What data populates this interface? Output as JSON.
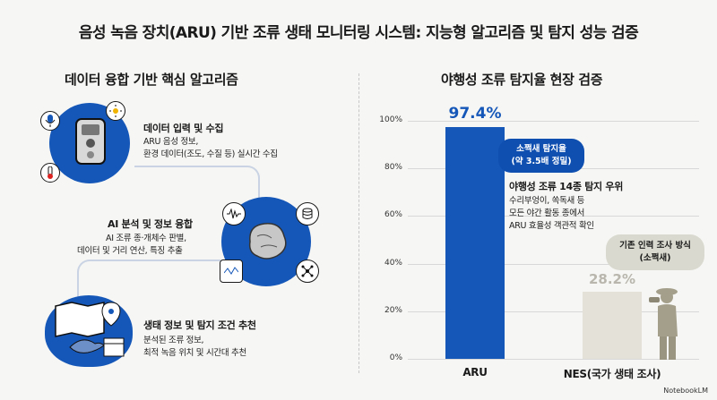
{
  "title": "음성 녹음 장치(ARU) 기반 조류 생태 모니터링 시스템: 지능형 알고리즘 및 탐지 성능 검증",
  "left": {
    "heading": "데이터 융합 기반 핵심 알고리즘",
    "steps": [
      {
        "title": "데이터 입력 및 수집",
        "desc1": "ARU 음성 정보,",
        "desc2": "환경 데이터(조도, 수질 등) 실시간 수집"
      },
      {
        "title": "AI 분석 및 정보 융합",
        "desc1": "AI 조류 종·개체수 판별,",
        "desc2": "데이터 및 거리 연산, 특징 추출"
      },
      {
        "title": "생태 정보 및 탐지 조건 추천",
        "desc1": "분석된 조류 정보,",
        "desc2": "최적 녹음 위치 및 시간대 추천"
      }
    ],
    "icons": [
      "microphone-icon",
      "sun-icon",
      "thermometer-icon",
      "recorder-device-icon",
      "waveform-icon",
      "database-icon",
      "brain-icon",
      "network-icon",
      "spectrogram-icon",
      "map-icon",
      "location-pin-icon",
      "bird-icon",
      "calendar-icon"
    ]
  },
  "right": {
    "heading": "야행성 조류 탐지율 현장 검증",
    "callout_aru": {
      "line1": "소쩍새 탐지율",
      "line2": "(약 3.5배 정밀)"
    },
    "annotation": {
      "title": "야행성 조류 14종 탐지 우위",
      "line1": "수리부엉이, 쏙독새 등",
      "line2": "모든 야간 활동 종에서",
      "line3": "ARU 효율성 객관적 확인"
    },
    "callout_nes": {
      "line1": "기존 인력 조사 방식",
      "line2": "(소쩍새)"
    },
    "colors": {
      "aru": "#1557b8",
      "nes": "#e3e1d8",
      "nes_label": "#b8b6ad"
    }
  },
  "chart_data": {
    "type": "bar",
    "categories": [
      "ARU",
      "NES(국가 생태 조사)"
    ],
    "values": [
      97.4,
      28.2
    ],
    "value_labels": [
      "97.4%",
      "28.2%"
    ],
    "yticks": [
      "100%",
      "80%",
      "60%",
      "40%",
      "20%",
      "0%"
    ],
    "ylim": [
      0,
      100
    ],
    "grid": true
  },
  "watermark": "NotebookLM"
}
